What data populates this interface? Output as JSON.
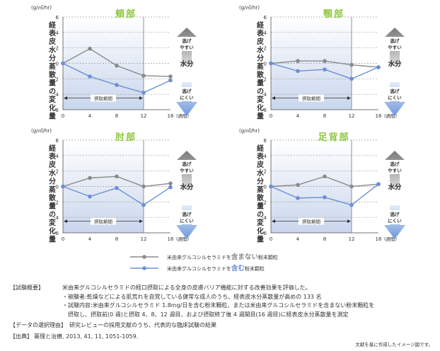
{
  "colors": {
    "with": "#6b8fd6",
    "without": "#8a8a8a",
    "panel_title": "#8dc63f",
    "shade_top": "#ffffff",
    "shade_bottom": "#c9d6ec",
    "arrow_up": "#8a8a8a",
    "arrow_down": "#8fb0e3"
  },
  "chart_data": [
    {
      "type": "line",
      "title": "頬部",
      "unit": "(g/㎡/hr)",
      "ylabel": "経表皮水分蒸散量の変化量",
      "x": [
        0,
        4,
        8,
        12,
        16
      ],
      "x_ticks": [
        "0",
        "4",
        "8",
        "12",
        "16"
      ],
      "x_unit": "(週間)",
      "ylim": [
        -6,
        6
      ],
      "y_ticks": [
        "6",
        "4",
        "2",
        "0",
        "-2",
        "-4",
        "-6"
      ],
      "intake_label": "摂取期間",
      "intake_range": [
        0,
        12
      ],
      "series": [
        {
          "name": "米由来グルコシルセラミドを含まない粉末顆粒",
          "key": "without",
          "values": [
            0,
            1.9,
            -0.3,
            -1.6,
            -1.7
          ]
        },
        {
          "name": "米由来グルコシルセラミドを含む粉末顆粒",
          "key": "with",
          "values": [
            0,
            -1.7,
            -2.8,
            -3.8,
            -2.2
          ]
        }
      ],
      "side_labels": {
        "up": [
          "逃げ",
          "やすい"
        ],
        "mid": "水分",
        "down": [
          "逃げ",
          "にくい"
        ]
      }
    },
    {
      "type": "line",
      "title": "顎部",
      "unit": "(g/㎡/hr)",
      "ylabel": "経表皮水分蒸散量の変化量",
      "x": [
        0,
        4,
        8,
        12,
        16
      ],
      "x_ticks": [
        "0",
        "4",
        "8",
        "12",
        "16"
      ],
      "x_unit": "(週間)",
      "ylim": [
        -6,
        6
      ],
      "y_ticks": [
        "6",
        "4",
        "2",
        "0",
        "-2",
        "-4",
        "-6"
      ],
      "intake_label": "摂取期間",
      "intake_range": [
        0,
        12
      ],
      "series": [
        {
          "name": "米由来グルコシルセラミドを含まない粉末顆粒",
          "key": "without",
          "values": [
            0,
            0.3,
            0.3,
            -0.2,
            -0.5
          ]
        },
        {
          "name": "米由来グルコシルセラミドを含む粉末顆粒",
          "key": "with",
          "values": [
            0,
            -1.0,
            -0.8,
            -2.0,
            -0.5
          ]
        }
      ],
      "side_labels": {
        "up": [
          "逃げ",
          "やすい"
        ],
        "mid": "水分",
        "down": [
          "逃げ",
          "にくい"
        ]
      }
    },
    {
      "type": "line",
      "title": "肘部",
      "unit": "(g/㎡/hr)",
      "ylabel": "経表皮水分蒸散量の変化量",
      "x": [
        0,
        4,
        8,
        12,
        16
      ],
      "x_ticks": [
        "0",
        "4",
        "8",
        "12",
        "16"
      ],
      "x_unit": "(週間)",
      "ylim": [
        -6,
        6
      ],
      "y_ticks": [
        "6",
        "4",
        "2",
        "0",
        "-2",
        "-4",
        "-6"
      ],
      "intake_label": "摂取期間",
      "intake_range": [
        0,
        12
      ],
      "series": [
        {
          "name": "米由来グルコシルセラミドを含まない粉末顆粒",
          "key": "without",
          "values": [
            0,
            1.1,
            1.3,
            0.0,
            0.4
          ]
        },
        {
          "name": "米由来グルコシルセラミドを含む粉末顆粒",
          "key": "with",
          "values": [
            0,
            -1.3,
            -0.2,
            -2.4,
            -0.1
          ]
        }
      ],
      "side_labels": {
        "up": [
          "逃げ",
          "やすい"
        ],
        "mid": "水分",
        "down": [
          "逃げ",
          "にくい"
        ]
      }
    },
    {
      "type": "line",
      "title": "足背部",
      "unit": "(g/㎡/hr)",
      "ylabel": "経表皮水分蒸散量の変化量",
      "x": [
        0,
        4,
        8,
        12,
        16
      ],
      "x_ticks": [
        "0",
        "4",
        "8",
        "12",
        "16"
      ],
      "x_unit": "(週間)",
      "ylim": [
        -6,
        6
      ],
      "y_ticks": [
        "6",
        "4",
        "2",
        "0",
        "-2",
        "-4",
        "-6"
      ],
      "intake_label": "摂取期間",
      "intake_range": [
        0,
        12
      ],
      "series": [
        {
          "name": "米由来グルコシルセラミドを含まない粉末顆粒",
          "key": "without",
          "values": [
            0,
            0.2,
            1.3,
            0.0,
            0.3
          ]
        },
        {
          "name": "米由来グルコシルセラミドを含む粉末顆粒",
          "key": "with",
          "values": [
            0,
            -1.5,
            -1.4,
            -2.4,
            0.3
          ]
        }
      ],
      "side_labels": {
        "up": [
          "逃げ",
          "やすい"
        ],
        "mid": "水分",
        "down": [
          "逃げ",
          "にくい"
        ]
      }
    }
  ],
  "legend": [
    {
      "key": "without",
      "prefix": "米由来グルコシルセラミドを",
      "emph": "含まない",
      "suffix": "粉末顆粒"
    },
    {
      "key": "with",
      "prefix": "米由来グルコシルセラミドを",
      "emph": "含む",
      "suffix": "粉末顆粒"
    }
  ],
  "notes": {
    "overview_label": "【試験概要】",
    "overview_text": "米由来グルコシルセラミドの経口摂取による全身の皮膚バリア機能に対する改善効果を評価した。",
    "bullet1": "・被験者:乾燥などによる肌荒れを自覚している健常な成人のうち、経表皮水分蒸散量が高めの 133 名",
    "bullet2a": "・試験内容:米由来グルコシルセラミド 1.8mg/日を含む粉末顆粒、または米由来グルコシルセラミドを含まない粉末顆粒を",
    "bullet2b": "摂取し、摂取前(0 週)と摂取 4、8、12 週目、および摂取終了後 4 週間目(16 週目)に経表皮水分蒸散量を測定",
    "reason_label": "【データの選択理由】",
    "reason_text": "研究レビューの採用文献のうち、代表的な臨床試験の結果",
    "source_label": "【出典】",
    "source_text": "薬理と治療, 2013, 41, 11, 1051-1059.",
    "credit": "文献を基に作成したイメージ図です。"
  }
}
